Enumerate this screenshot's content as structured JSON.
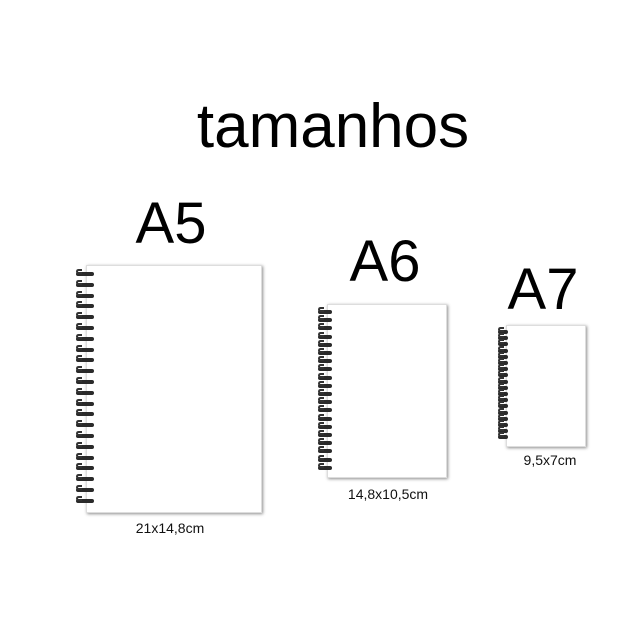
{
  "title": "tamanhos",
  "notebooks": [
    {
      "label": "A5",
      "dimensions": "21x14,8cm"
    },
    {
      "label": "A6",
      "dimensions": "14,8x10,5cm"
    },
    {
      "label": "A7",
      "dimensions": "9,5x7cm"
    }
  ],
  "colors": {
    "background": "#ffffff",
    "text": "#000000",
    "spiral": "#2a2a2a"
  }
}
